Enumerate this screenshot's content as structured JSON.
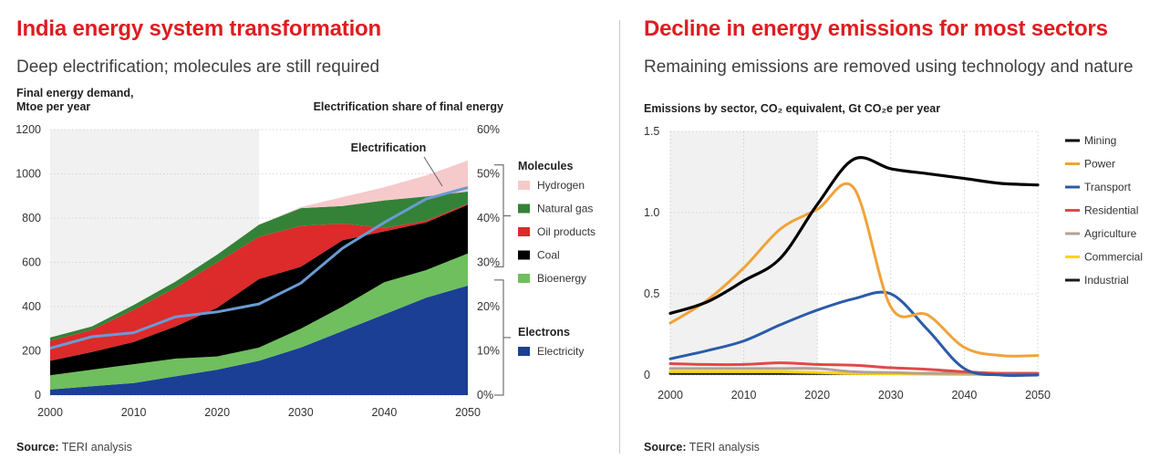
{
  "left": {
    "title": "India energy system transformation",
    "subtitle": "Deep electrification; molecules are still required",
    "ylabel_left": "Final energy demand,\nMtoe per year",
    "ylabel_right": "Electrification share of final energy",
    "annotation": "Electrification",
    "legend_molecules": "Molecules",
    "legend_electrons": "Electrons",
    "source_label": "Source:",
    "source_text": "TERI analysis"
  },
  "right": {
    "title": "Decline in energy emissions for most sectors",
    "subtitle": "Remaining emissions are removed using technology and nature",
    "ylabel": "Emissions by sector, CO₂ equivalent, Gt CO₂e per year",
    "source_label": "Source:",
    "source_text": "TERI analysis"
  },
  "chart_data": [
    {
      "type": "area",
      "stacked": true,
      "title": "India energy system transformation",
      "x": [
        2000,
        2005,
        2010,
        2015,
        2020,
        2025,
        2030,
        2035,
        2040,
        2045,
        2050
      ],
      "ylim": [
        0,
        1200
      ],
      "yticks": [
        0,
        200,
        400,
        600,
        800,
        1000,
        1200
      ],
      "y2lim": [
        0,
        60
      ],
      "y2ticks": [
        "0%",
        "10%",
        "20%",
        "30%",
        "40%",
        "50%",
        "60%"
      ],
      "shaded_x_range": [
        2000,
        2025
      ],
      "series": [
        {
          "name": "Electricity",
          "group": "Electrons",
          "color": "#1b3f95",
          "values": [
            25,
            40,
            55,
            85,
            115,
            155,
            215,
            290,
            365,
            440,
            495
          ]
        },
        {
          "name": "Bioenergy",
          "group": "Molecules",
          "color": "#6fbf5e",
          "values": [
            65,
            75,
            85,
            80,
            60,
            60,
            85,
            110,
            145,
            125,
            145
          ]
        },
        {
          "name": "Coal",
          "group": "Molecules",
          "color": "#000000",
          "values": [
            65,
            80,
            100,
            145,
            220,
            310,
            280,
            300,
            230,
            215,
            220
          ]
        },
        {
          "name": "Oil products",
          "group": "Molecules",
          "color": "#dd2a2a",
          "values": [
            90,
            100,
            145,
            175,
            205,
            190,
            185,
            75,
            15,
            8,
            5
          ]
        },
        {
          "name": "Natural gas",
          "group": "Molecules",
          "color": "#348238",
          "values": [
            15,
            15,
            22,
            28,
            35,
            55,
            80,
            80,
            125,
            110,
            55
          ]
        },
        {
          "name": "Hydrogen",
          "group": "Molecules",
          "color": "#f6c9cb",
          "values": [
            0,
            0,
            0,
            0,
            0,
            0,
            5,
            40,
            60,
            95,
            140
          ]
        }
      ],
      "overlay_line": {
        "name": "Electrification",
        "color": "#6a9bd3",
        "axis": "right",
        "values": [
          10.6,
          13.2,
          14.1,
          17.7,
          18.8,
          20.6,
          25.3,
          33.2,
          39.0,
          44.3,
          46.9
        ]
      },
      "legend_groups": [
        {
          "heading": "Molecules",
          "items": [
            "Hydrogen",
            "Natural gas",
            "Oil products",
            "Coal",
            "Bioenergy"
          ]
        },
        {
          "heading": "Electrons",
          "items": [
            "Electricity"
          ]
        }
      ]
    },
    {
      "type": "line",
      "title": "Decline in energy emissions for most sectors",
      "x": [
        2000,
        2005,
        2010,
        2015,
        2020,
        2025,
        2030,
        2035,
        2040,
        2045,
        2050
      ],
      "ylim": [
        0,
        1.5
      ],
      "yticks": [
        "0",
        "0.5",
        "1.0",
        "1.5"
      ],
      "xticks": [
        2000,
        2010,
        2020,
        2030,
        2040,
        2050
      ],
      "shaded_x_range": [
        2000,
        2020
      ],
      "legend_position": "right",
      "series": [
        {
          "name": "Mining",
          "color": "#000000",
          "values": [
            0.38,
            0.45,
            0.58,
            0.72,
            1.05,
            1.33,
            1.27,
            1.24,
            1.21,
            1.18,
            1.17
          ]
        },
        {
          "name": "Power",
          "color": "#f0a33a",
          "values": [
            0.32,
            0.46,
            0.66,
            0.9,
            1.02,
            1.15,
            0.42,
            0.37,
            0.17,
            0.12,
            0.12
          ]
        },
        {
          "name": "Transport",
          "color": "#2a5ba8",
          "values": [
            0.1,
            0.15,
            0.21,
            0.31,
            0.4,
            0.47,
            0.5,
            0.28,
            0.04,
            0.0,
            0.0
          ]
        },
        {
          "name": "Residential",
          "color": "#e04a48",
          "values": [
            0.07,
            0.065,
            0.065,
            0.075,
            0.065,
            0.06,
            0.045,
            0.035,
            0.02,
            0.01,
            0.01
          ]
        },
        {
          "name": "Agriculture",
          "color": "#b3a197",
          "values": [
            0.04,
            0.04,
            0.04,
            0.04,
            0.04,
            0.02,
            0.015,
            0.01,
            0.01,
            0.005,
            0.005
          ]
        },
        {
          "name": "Commercial",
          "color": "#ffd500",
          "values": [
            0.02,
            0.02,
            0.02,
            0.02,
            0.015,
            0.01,
            0.008,
            0.005,
            0.003,
            0.002,
            0.002
          ]
        },
        {
          "name": "Industrial",
          "color": "#1a1a1a",
          "values": [
            0.01,
            0.01,
            0.01,
            0.01,
            0.01,
            0.01,
            0.01,
            0.01,
            0.01,
            0.01,
            0.01
          ]
        }
      ]
    }
  ]
}
